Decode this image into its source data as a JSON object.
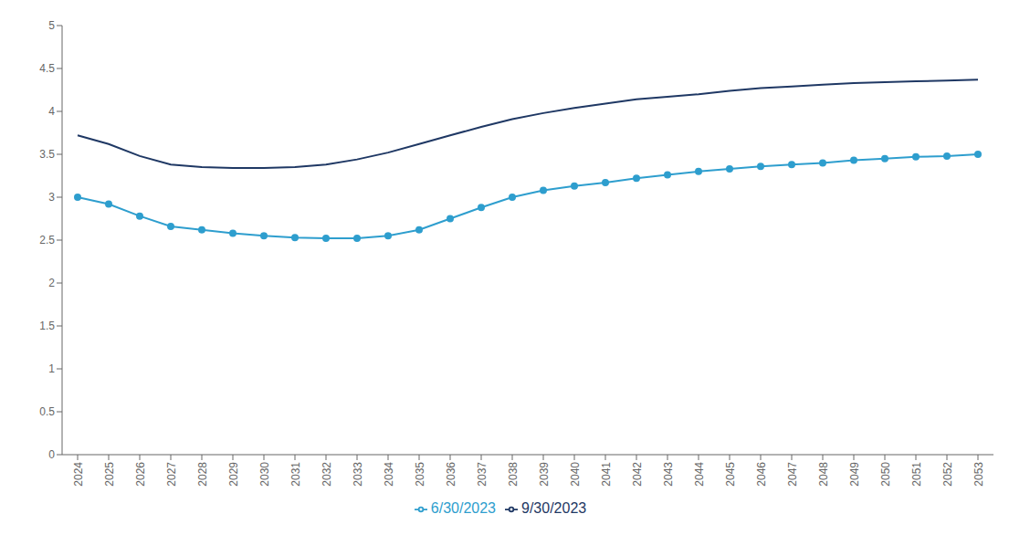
{
  "chart_data": {
    "type": "line",
    "x": [
      2024,
      2025,
      2026,
      2027,
      2028,
      2029,
      2030,
      2031,
      2032,
      2033,
      2034,
      2035,
      2036,
      2037,
      2038,
      2039,
      2040,
      2041,
      2042,
      2043,
      2044,
      2045,
      2046,
      2047,
      2048,
      2049,
      2050,
      2051,
      2052,
      2053
    ],
    "series": [
      {
        "name": "9/30/2023",
        "color": "#1f3864",
        "marker": "none",
        "values": [
          3.72,
          3.62,
          3.48,
          3.38,
          3.35,
          3.34,
          3.34,
          3.35,
          3.38,
          3.44,
          3.52,
          3.62,
          3.72,
          3.82,
          3.91,
          3.98,
          4.04,
          4.09,
          4.14,
          4.17,
          4.2,
          4.24,
          4.27,
          4.29,
          4.31,
          4.33,
          4.34,
          4.35,
          4.36,
          4.37
        ]
      },
      {
        "name": "6/30/2023",
        "color": "#2e9ece",
        "marker": "circle",
        "values": [
          3.0,
          2.92,
          2.78,
          2.66,
          2.62,
          2.58,
          2.55,
          2.53,
          2.52,
          2.52,
          2.55,
          2.62,
          2.75,
          2.88,
          3.0,
          3.08,
          3.13,
          3.17,
          3.22,
          3.26,
          3.3,
          3.33,
          3.36,
          3.38,
          3.4,
          3.43,
          3.45,
          3.47,
          3.48,
          3.5
        ]
      }
    ],
    "xlim": [
      2023.5,
      2053.5
    ],
    "xticks": [
      2024,
      2025,
      2026,
      2027,
      2028,
      2029,
      2030,
      2031,
      2032,
      2033,
      2034,
      2035,
      2036,
      2037,
      2038,
      2039,
      2040,
      2041,
      2042,
      2043,
      2044,
      2045,
      2046,
      2047,
      2048,
      2049,
      2050,
      2051,
      2052,
      2053
    ],
    "ylim": [
      0,
      5
    ],
    "yticks": [
      0,
      0.5,
      1,
      1.5,
      2,
      2.5,
      3,
      3.5,
      4,
      4.5,
      5
    ],
    "grid": false,
    "legend": "bottom"
  }
}
